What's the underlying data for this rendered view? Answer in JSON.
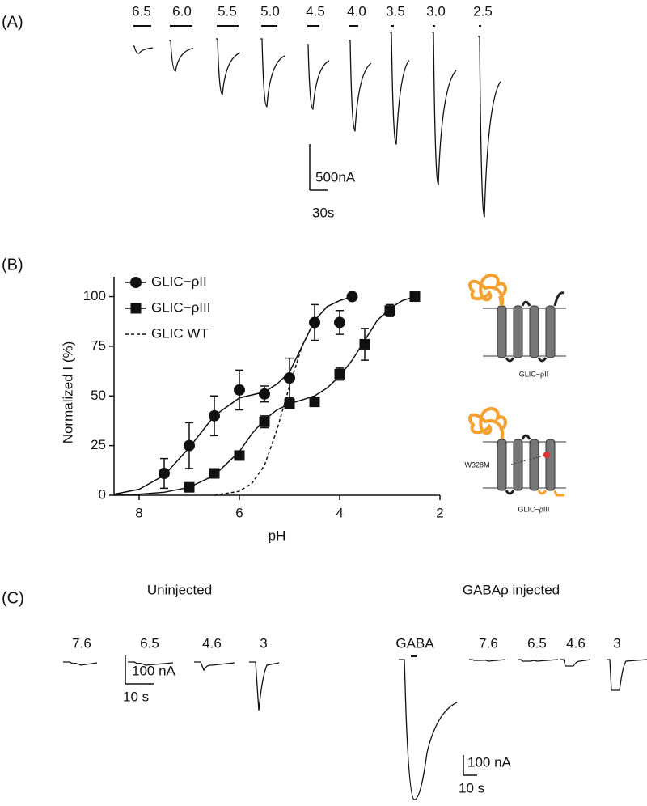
{
  "panel_a": {
    "label": "(A)",
    "ph_labels": [
      "6.5",
      "6.0",
      "5.5",
      "5.0",
      "4.5",
      "4.0",
      "3.5",
      "3.0",
      "2.5"
    ],
    "scale_current": "500nA",
    "scale_time": "30s"
  },
  "chart_data": {
    "type": "scatter",
    "panel_label": "(B)",
    "xlabel": "pH",
    "ylabel": "Normalized I (%)",
    "xlim": [
      8.5,
      2
    ],
    "xticks": [
      8,
      6,
      4,
      2
    ],
    "ylim": [
      0,
      110
    ],
    "yticks": [
      0,
      25,
      50,
      75,
      100
    ],
    "legend": "upper-left",
    "series": [
      {
        "name": "GLIC−ρII",
        "marker": "circle",
        "color": "#111111",
        "x": [
          7.5,
          7.0,
          6.5,
          6.0,
          5.5,
          5.0,
          4.5,
          4.0,
          3.75
        ],
        "values": [
          11,
          25,
          40,
          53,
          51,
          59,
          87,
          87,
          100
        ],
        "errors": [
          7.5,
          11.5,
          10,
          10,
          4,
          10,
          9,
          6,
          null
        ],
        "fit_x": [
          8.5,
          8,
          7.5,
          7,
          6.5,
          6,
          5.5,
          5.25,
          5,
          4.75,
          4.5,
          4.25,
          4,
          3.75
        ],
        "fit_values": [
          0.5,
          3,
          10,
          24,
          40,
          49,
          52,
          56,
          62,
          75,
          88,
          95,
          98,
          100
        ]
      },
      {
        "name": "GLIC−ρIII",
        "marker": "square",
        "color": "#111111",
        "x": [
          7.0,
          6.5,
          6.0,
          5.5,
          5.0,
          4.5,
          4.0,
          3.5,
          3.0,
          2.5
        ],
        "values": [
          4,
          11,
          20,
          37,
          46,
          47,
          61,
          76,
          93,
          100
        ],
        "errors": [
          null,
          null,
          null,
          3,
          null,
          null,
          3,
          8,
          3,
          null
        ],
        "fit_x": [
          8.5,
          8,
          7.5,
          7,
          6.5,
          6,
          5.75,
          5.5,
          5.25,
          5,
          4.5,
          4.25,
          4,
          3.75,
          3.5,
          3.25,
          3,
          2.75,
          2.5
        ],
        "fit_values": [
          0,
          0.5,
          1.5,
          4,
          10,
          22,
          31,
          38,
          43,
          46,
          50,
          54,
          60,
          68,
          78,
          88,
          94,
          98,
          100
        ]
      },
      {
        "name": "GLIC WT",
        "marker": "none",
        "line_style": "dashed",
        "color": "#111111",
        "x": [
          6.5,
          6,
          5.75,
          5.5,
          5.25,
          5,
          4.75,
          4.5,
          4.25,
          4,
          3.75
        ],
        "values": [
          0,
          2,
          6,
          15,
          33,
          55,
          75,
          88,
          95,
          98,
          100
        ]
      }
    ]
  },
  "diagram": {
    "construct_1": "GLIC−ρII",
    "construct_2": "GLIC−ρIII",
    "mutation": "W328M"
  },
  "panel_c": {
    "label": "(C)",
    "uninjected": {
      "title": "Uninjected",
      "ph_labels": [
        "7.6",
        "6.5",
        "4.6",
        "3"
      ],
      "scale_current": "100 nA",
      "scale_time": "10 s"
    },
    "injected": {
      "title": "GABAρ injected",
      "agonist": "GABA",
      "ph_labels": [
        "7.6",
        "6.5",
        "4.6",
        "3"
      ],
      "scale_current": "100 nA",
      "scale_time": "10 s"
    }
  }
}
